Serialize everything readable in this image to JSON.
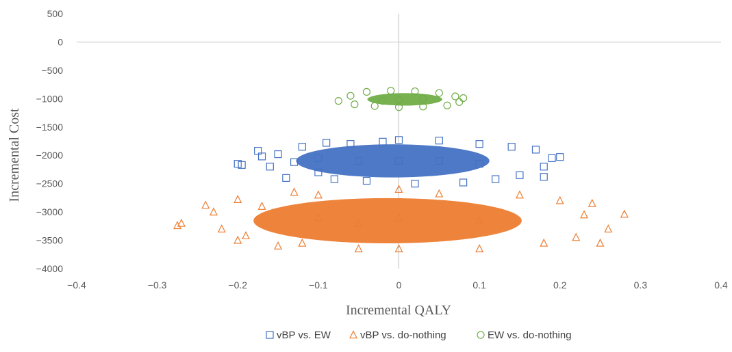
{
  "chart_data": {
    "type": "scatter",
    "title": "",
    "xlabel": "Incremental QALY",
    "ylabel": "Incremental Cost",
    "xlim": [
      -0.4,
      0.4
    ],
    "ylim": [
      -4000,
      500
    ],
    "x_ticks": [
      -0.4,
      -0.3,
      -0.2,
      -0.1,
      0,
      0.1,
      0.2,
      0.3,
      0.4
    ],
    "x_tick_labels": [
      "−0.4",
      "−0.3",
      "−0.2",
      "−0.1",
      "0",
      "0.1",
      "0.2",
      "0.3",
      "0.4"
    ],
    "y_ticks": [
      500,
      0,
      -500,
      -1000,
      -1500,
      -2000,
      -2500,
      -3000,
      -3500,
      -4000
    ],
    "y_tick_labels": [
      "500",
      "0",
      "−500",
      "−1000",
      "−1500",
      "−2000",
      "−2500",
      "−3000",
      "−3500",
      "−4000"
    ],
    "grid": false,
    "legend_position": "bottom",
    "series": [
      {
        "name": "vBP vs. EW",
        "marker": "square",
        "color": "#4472C4",
        "points": [
          [
            -0.2,
            -2150
          ],
          [
            -0.195,
            -2170
          ],
          [
            -0.175,
            -1920
          ],
          [
            -0.17,
            -2020
          ],
          [
            -0.16,
            -2200
          ],
          [
            -0.15,
            -1980
          ],
          [
            -0.14,
            -2400
          ],
          [
            -0.13,
            -2120
          ],
          [
            -0.12,
            -1850
          ],
          [
            -0.1,
            -2300
          ],
          [
            -0.09,
            -1780
          ],
          [
            -0.08,
            -2420
          ],
          [
            -0.06,
            -1800
          ],
          [
            -0.04,
            -2450
          ],
          [
            -0.02,
            -1760
          ],
          [
            0,
            -1730
          ],
          [
            0.02,
            -2500
          ],
          [
            0.05,
            -1740
          ],
          [
            0.08,
            -2480
          ],
          [
            0.1,
            -1800
          ],
          [
            0.12,
            -2420
          ],
          [
            0.14,
            -1850
          ],
          [
            0.15,
            -2350
          ],
          [
            0.17,
            -1900
          ],
          [
            0.18,
            -2200
          ],
          [
            0.19,
            -2050
          ],
          [
            0.2,
            -2030
          ],
          [
            0.18,
            -2380
          ],
          [
            -0.05,
            -2100
          ],
          [
            0,
            -2100
          ],
          [
            0.05,
            -2100
          ],
          [
            0.1,
            -2150
          ],
          [
            -0.1,
            -2050
          ]
        ]
      },
      {
        "name": "vBP vs. do-nothing",
        "marker": "triangle",
        "color": "#ED7D31",
        "points": [
          [
            -0.275,
            -3240
          ],
          [
            -0.27,
            -3200
          ],
          [
            -0.24,
            -2880
          ],
          [
            -0.23,
            -3000
          ],
          [
            -0.22,
            -3300
          ],
          [
            -0.2,
            -2780
          ],
          [
            -0.2,
            -3500
          ],
          [
            -0.19,
            -3420
          ],
          [
            -0.17,
            -2900
          ],
          [
            -0.15,
            -3600
          ],
          [
            -0.13,
            -2650
          ],
          [
            -0.12,
            -3550
          ],
          [
            -0.1,
            -2700
          ],
          [
            -0.05,
            -3650
          ],
          [
            0,
            -2600
          ],
          [
            0,
            -3650
          ],
          [
            0.05,
            -2680
          ],
          [
            0.1,
            -3650
          ],
          [
            0.15,
            -2700
          ],
          [
            0.18,
            -3550
          ],
          [
            0.2,
            -2800
          ],
          [
            0.22,
            -3450
          ],
          [
            0.23,
            -3050
          ],
          [
            0.24,
            -2850
          ],
          [
            0.25,
            -3550
          ],
          [
            0.26,
            -3300
          ],
          [
            0.28,
            -3040
          ],
          [
            -0.1,
            -3100
          ],
          [
            0,
            -3100
          ],
          [
            0.1,
            -3150
          ],
          [
            -0.05,
            -3200
          ]
        ]
      },
      {
        "name": "EW vs. do-nothing",
        "marker": "circle",
        "color": "#70AD47",
        "points": [
          [
            -0.075,
            -1040
          ],
          [
            -0.06,
            -950
          ],
          [
            -0.055,
            -1100
          ],
          [
            -0.04,
            -880
          ],
          [
            -0.03,
            -1130
          ],
          [
            -0.01,
            -860
          ],
          [
            0,
            -1150
          ],
          [
            0.02,
            -870
          ],
          [
            0.03,
            -1140
          ],
          [
            0.05,
            -900
          ],
          [
            0.06,
            -1120
          ],
          [
            0.07,
            -960
          ],
          [
            0.08,
            -990
          ],
          [
            0.075,
            -1060
          ],
          [
            0,
            -1020
          ],
          [
            0.03,
            -1000
          ],
          [
            -0.02,
            -1040
          ]
        ]
      }
    ]
  }
}
